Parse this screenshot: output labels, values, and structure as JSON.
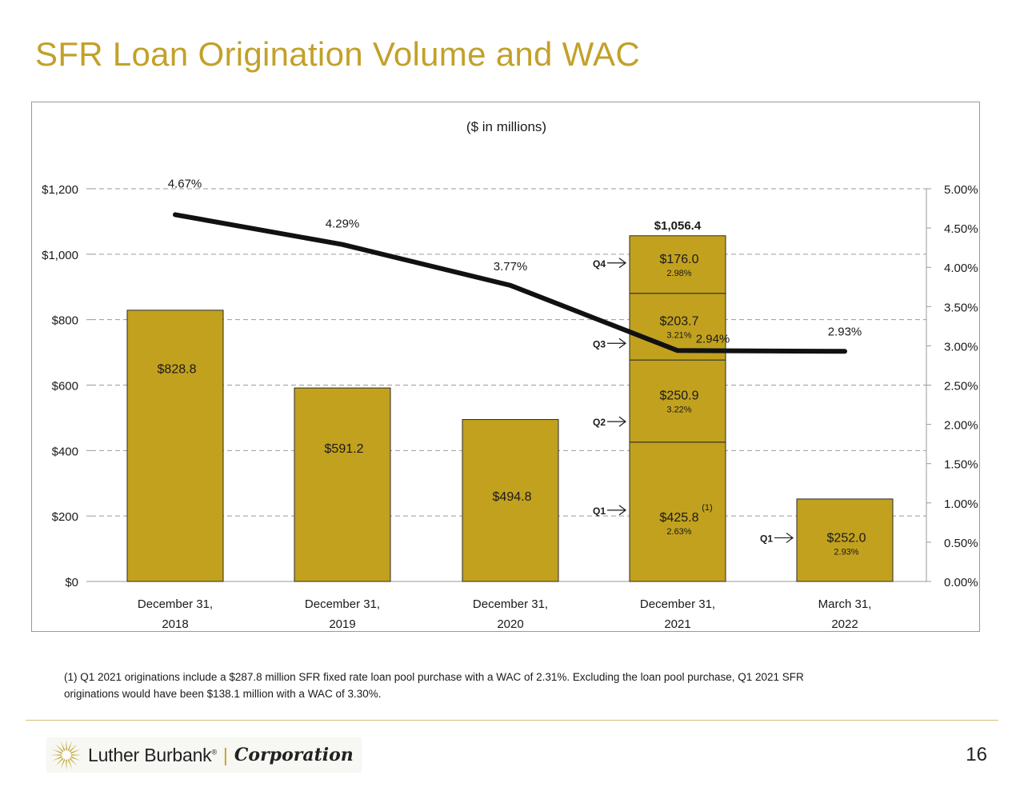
{
  "page": {
    "title": "SFR Loan Origination Volume and WAC",
    "page_number": "16"
  },
  "chart_data": {
    "type": "bar",
    "subtitle": "($ in millions)",
    "categories": [
      [
        "December 31,",
        "2018"
      ],
      [
        "December 31,",
        "2019"
      ],
      [
        "December 31,",
        "2020"
      ],
      [
        "December 31,",
        "2021"
      ],
      [
        "March 31,",
        "2022"
      ]
    ],
    "y_left": {
      "min": 0,
      "max": 1200,
      "step": 200,
      "ticks": [
        "$0",
        "$200",
        "$400",
        "$600",
        "$800",
        "$1,000",
        "$1,200"
      ]
    },
    "y_right": {
      "min": 0,
      "max": 5.0,
      "step": 0.5,
      "ticks": [
        "0.00%",
        "0.50%",
        "1.00%",
        "1.50%",
        "2.00%",
        "2.50%",
        "3.00%",
        "3.50%",
        "4.00%",
        "4.50%",
        "5.00%"
      ]
    },
    "grid": "dashed horizontal",
    "bar_color": "#c2a11e",
    "line_color": "#111111",
    "bars": [
      {
        "category": 0,
        "value": 828.8,
        "label": "$828.8"
      },
      {
        "category": 1,
        "value": 591.2,
        "label": "$591.2"
      },
      {
        "category": 2,
        "value": 494.8,
        "label": "$494.8"
      },
      {
        "category": 3,
        "total_label": "$1,056.4",
        "segments": [
          {
            "quarter": "Q1",
            "value": 425.8,
            "label": "$425.8",
            "wac": "2.63%",
            "note": "(1)"
          },
          {
            "quarter": "Q2",
            "value": 250.9,
            "label": "$250.9",
            "wac": "3.22%"
          },
          {
            "quarter": "Q3",
            "value": 203.7,
            "label": "$203.7",
            "wac": "3.21%"
          },
          {
            "quarter": "Q4",
            "value": 176.0,
            "label": "$176.0",
            "wac": "2.98%"
          }
        ]
      },
      {
        "category": 4,
        "segments": [
          {
            "quarter": "Q1",
            "value": 252.0,
            "label": "$252.0",
            "wac": "2.93%"
          }
        ]
      }
    ],
    "wac_line": {
      "values": [
        4.67,
        4.29,
        3.77,
        2.94,
        2.93
      ],
      "labels": [
        "4.67%",
        "4.29%",
        "3.77%",
        "2.94%",
        "2.93%"
      ]
    }
  },
  "footnote": {
    "line1": "(1) Q1 2021 originations include a $287.8 million SFR fixed rate loan pool purchase with a WAC of 2.31%.  Excluding the loan pool purchase, Q1 2021 SFR",
    "line2": "originations would have been $138.1 million with a WAC of 3.30%."
  },
  "logo": {
    "name": "Luther Burbank",
    "registered": "®",
    "separator": "|",
    "corporation": "Corporation",
    "icon": "sunburst-icon"
  }
}
